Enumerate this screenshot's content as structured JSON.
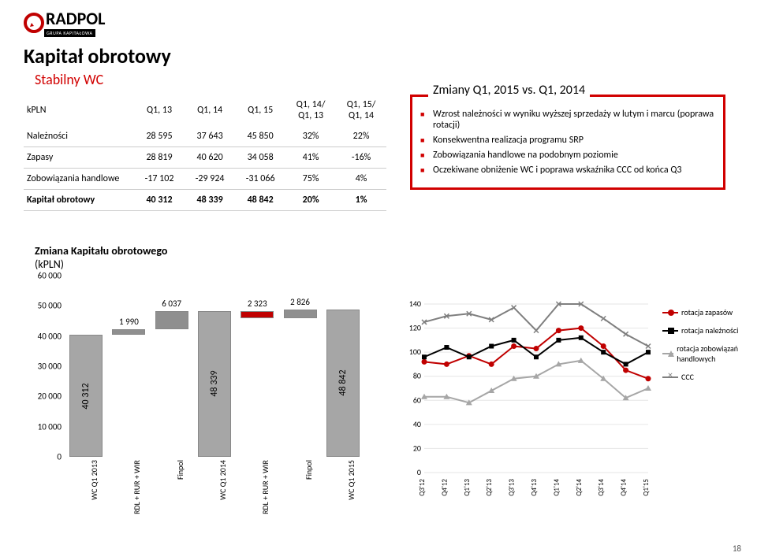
{
  "logo": {
    "name": "RADPOL",
    "sub": "GRUPA KAPITAŁOWA"
  },
  "title": "Kapitał obrotowy",
  "subtitle": "Stabilny WC",
  "table": {
    "columns": [
      "kPLN",
      "Q1, 13",
      "Q1, 14",
      "Q1, 15",
      "Q1, 14/ Q1, 13",
      "Q1, 15/ Q1, 14"
    ],
    "rows": [
      {
        "cells": [
          "Należności",
          "28 595",
          "37 643",
          "45 850",
          "32%",
          "22%"
        ],
        "bold": false
      },
      {
        "cells": [
          "Zapasy",
          "28 819",
          "40 620",
          "34 058",
          "41%",
          "-16%"
        ],
        "bold": false
      },
      {
        "cells": [
          "Zobowiązania handlowe",
          "-17 102",
          "-29 924",
          "-31 066",
          "75%",
          "4%"
        ],
        "bold": false
      },
      {
        "cells": [
          "Kapitał obrotowy",
          "40 312",
          "48 339",
          "48 842",
          "20%",
          "1%"
        ],
        "bold": true
      }
    ]
  },
  "callout": {
    "title": "Zmiany Q1, 2015 vs. Q1, 2014",
    "bullets": [
      "Wzrost należności w wyniku wyższej sprzedaży w lutym i marcu (poprawa rotacji)",
      "Konsekwentna realizacja programu SRP",
      "Zobowiązania handlowe na podobnym poziomie",
      "Oczekiwane obniżenie WC i poprawa wskaźnika CCC od końca Q3"
    ]
  },
  "bar_chart": {
    "title": "Zmiana Kapitału obrotowego",
    "subtitle": "(kPLN)",
    "ylim": [
      0,
      60000
    ],
    "ytick_step": 10000,
    "yticks": [
      "0",
      "10 000",
      "20 000",
      "30 000",
      "40 000",
      "50 000",
      "60 000"
    ],
    "bars": [
      {
        "cat": "WC Q1 2013",
        "value": 40312,
        "label": "40 312",
        "color": "#a6a6a6",
        "label_pos": "inside"
      },
      {
        "cat": "RDL + RUR + WIR",
        "value": 1990,
        "label": "1 990",
        "color": "#8f8f8f",
        "base": 40312,
        "float": true
      },
      {
        "cat": "Finpol",
        "value": 6037,
        "label": "6 037",
        "color": "#8f8f8f",
        "base": 42302,
        "float": true
      },
      {
        "cat": "WC Q1 2014",
        "value": 48339,
        "label": "48 339",
        "color": "#a6a6a6",
        "label_pos": "inside"
      },
      {
        "cat": "RDL + RUR + WIR",
        "value": 2323,
        "label": "2 323",
        "color": "#c00000",
        "base": 46016,
        "float": true,
        "negative": true
      },
      {
        "cat": "Finpol",
        "value": 2826,
        "label": "2 826",
        "color": "#8f8f8f",
        "base": 46016,
        "float": true
      },
      {
        "cat": "WC Q1 2015",
        "value": 48842,
        "label": "48 842",
        "color": "#a6a6a6",
        "label_pos": "inside"
      }
    ]
  },
  "line_chart": {
    "ylim": [
      0,
      140
    ],
    "ytick_step": 20,
    "yticks": [
      "0",
      "20",
      "40",
      "60",
      "80",
      "100",
      "120",
      "140"
    ],
    "categories": [
      "Q3'12",
      "Q4'12",
      "Q1'13",
      "Q2'13",
      "Q3'13",
      "Q4'13",
      "Q1'14",
      "Q2'14",
      "Q3'14",
      "Q4'14",
      "Q1'15"
    ],
    "series": [
      {
        "name": "rotacja zapasów",
        "color": "#c00000",
        "marker": "circle",
        "values": [
          92,
          90,
          97,
          90,
          105,
          103,
          118,
          120,
          105,
          85,
          78
        ]
      },
      {
        "name": "rotacja należności",
        "color": "#000000",
        "marker": "square",
        "values": [
          96,
          104,
          96,
          105,
          110,
          96,
          110,
          112,
          100,
          90,
          100
        ]
      },
      {
        "name": "rotacja zobowiązań handlowych",
        "color": "#a6a6a6",
        "marker": "triangle",
        "values": [
          63,
          63,
          58,
          68,
          78,
          80,
          90,
          93,
          78,
          62,
          70
        ]
      },
      {
        "name": "CCC",
        "color": "#7f7f7f",
        "marker": "x",
        "values": [
          125,
          130,
          132,
          127,
          137,
          118,
          140,
          140,
          128,
          115,
          105
        ]
      }
    ]
  },
  "legend": [
    {
      "label": "rotacja zapasów",
      "color": "#c00000",
      "marker": "circle"
    },
    {
      "label": "rotacja należności",
      "color": "#000000",
      "marker": "square"
    },
    {
      "label": "rotacja zobowiązań handlowych",
      "color": "#a6a6a6",
      "marker": "triangle"
    },
    {
      "label": "CCC",
      "color": "#7f7f7f",
      "marker": "x"
    }
  ],
  "page_number": "18"
}
